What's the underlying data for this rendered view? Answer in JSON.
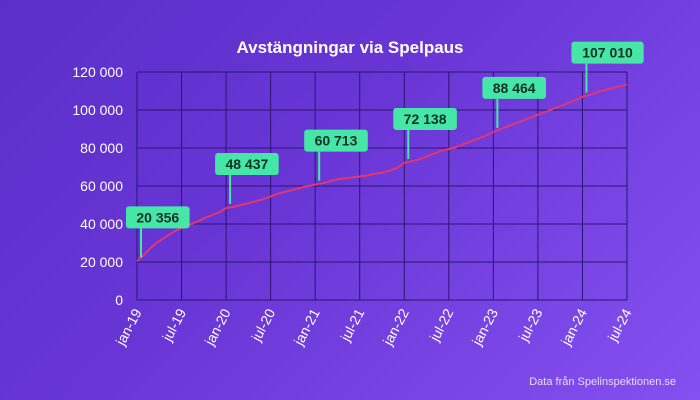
{
  "chart_data": {
    "type": "line",
    "title": "Avstängningar via Spelpaus",
    "source": "Data från Spelinspektionen.se",
    "xlabel": "",
    "ylabel": "",
    "ylim": [
      0,
      120000
    ],
    "y_ticks": [
      "0",
      "20 000",
      "40 000",
      "60 000",
      "80 000",
      "100 000",
      "120 000"
    ],
    "x_ticks": [
      "jan-19",
      "jul-19",
      "jan-20",
      "jul-20",
      "jan-21",
      "jul-21",
      "jan-22",
      "jul-22",
      "jan-23",
      "jul-23",
      "jan-24",
      "jul-24"
    ],
    "grid": true,
    "colors": {
      "line": "#e2366f",
      "grid": "#2a1670",
      "annotation": "#46e6a6",
      "text": "#ffffff"
    },
    "series": [
      {
        "x": [
          0,
          1,
          2,
          3,
          4,
          5,
          6,
          7,
          8,
          9,
          10,
          11,
          12,
          13,
          14,
          15,
          16,
          17,
          18,
          19,
          20,
          21,
          22,
          23,
          24,
          25,
          26,
          27,
          28,
          29,
          30,
          31,
          32,
          33,
          34,
          35,
          36,
          37,
          38,
          39,
          40,
          41,
          42,
          43,
          44,
          45,
          46,
          47,
          48,
          49,
          50,
          51,
          52,
          53,
          54,
          55,
          56,
          57,
          58,
          59,
          60,
          61,
          62,
          63,
          64,
          65,
          66
        ],
        "values": [
          20356,
          24000,
          28000,
          31000,
          33500,
          36000,
          38000,
          39500,
          41000,
          43000,
          44500,
          46000,
          48437,
          49000,
          50000,
          51000,
          52000,
          53000,
          54500,
          56000,
          57000,
          58000,
          59000,
          60000,
          60713,
          61500,
          62500,
          63500,
          64000,
          64500,
          65000,
          65500,
          66500,
          67000,
          68000,
          69500,
          72138,
          73000,
          74000,
          75500,
          77000,
          78500,
          79500,
          80500,
          82000,
          83500,
          85000,
          86500,
          88464,
          90000,
          91500,
          93000,
          94500,
          96000,
          97500,
          99000,
          100500,
          102000,
          103500,
          105000,
          107010,
          108000,
          109500,
          110500,
          111500,
          112500,
          113500
        ]
      }
    ],
    "annotations": [
      {
        "x": 0,
        "y": 20356,
        "label": "20 356"
      },
      {
        "x": 12,
        "y": 48437,
        "label": "48 437"
      },
      {
        "x": 24,
        "y": 60713,
        "label": "60 713"
      },
      {
        "x": 36,
        "y": 72138,
        "label": "72 138"
      },
      {
        "x": 48,
        "y": 88464,
        "label": "88 464"
      },
      {
        "x": 60,
        "y": 107010,
        "label": "107 010"
      }
    ]
  }
}
